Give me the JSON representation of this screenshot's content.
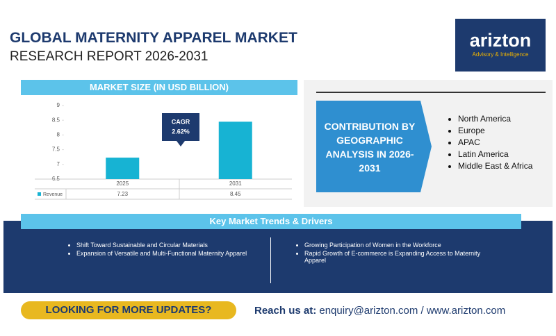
{
  "header": {
    "title": "GLOBAL MATERNITY APPAREL MARKET",
    "subtitle": "RESEARCH REPORT 2026-2031",
    "logo": "arizton",
    "logo_tagline": "Advisory & Intelligence"
  },
  "chart_data": {
    "type": "bar",
    "title": "MARKET SIZE (IN USD BILLION)",
    "categories": [
      "2025",
      "2031"
    ],
    "series": [
      {
        "name": "Revenue",
        "color": "#17b3d3",
        "values": [
          7.23,
          8.45
        ]
      }
    ],
    "ylim": [
      6.5,
      9
    ],
    "yticks": [
      6.5,
      7,
      7.5,
      8,
      8.5,
      9
    ],
    "cagr_label": "CAGR",
    "cagr_value": "2.62%"
  },
  "geography": {
    "title": "CONTRIBUTION BY GEOGRAPHIC ANALYSIS IN 2026-2031",
    "regions": [
      "North America",
      "Europe",
      "APAC",
      "Latin America",
      "Middle East & Africa"
    ]
  },
  "trends": {
    "title": "Key Market Trends & Drivers",
    "left": [
      "Shift Toward Sustainable and Circular Materials",
      "Expansion of Versatile and Multi-Functional Maternity Apparel"
    ],
    "right": [
      "Growing Participation of Women in the Workforce",
      "Rapid Growth of E-commerce is Expanding Access to Maternity Apparel"
    ]
  },
  "footer": {
    "cta": "LOOKING FOR MORE UPDATES?",
    "contact_label": "Reach us at:",
    "contact": "enquiry@arizton.com / www.arizton.com"
  }
}
